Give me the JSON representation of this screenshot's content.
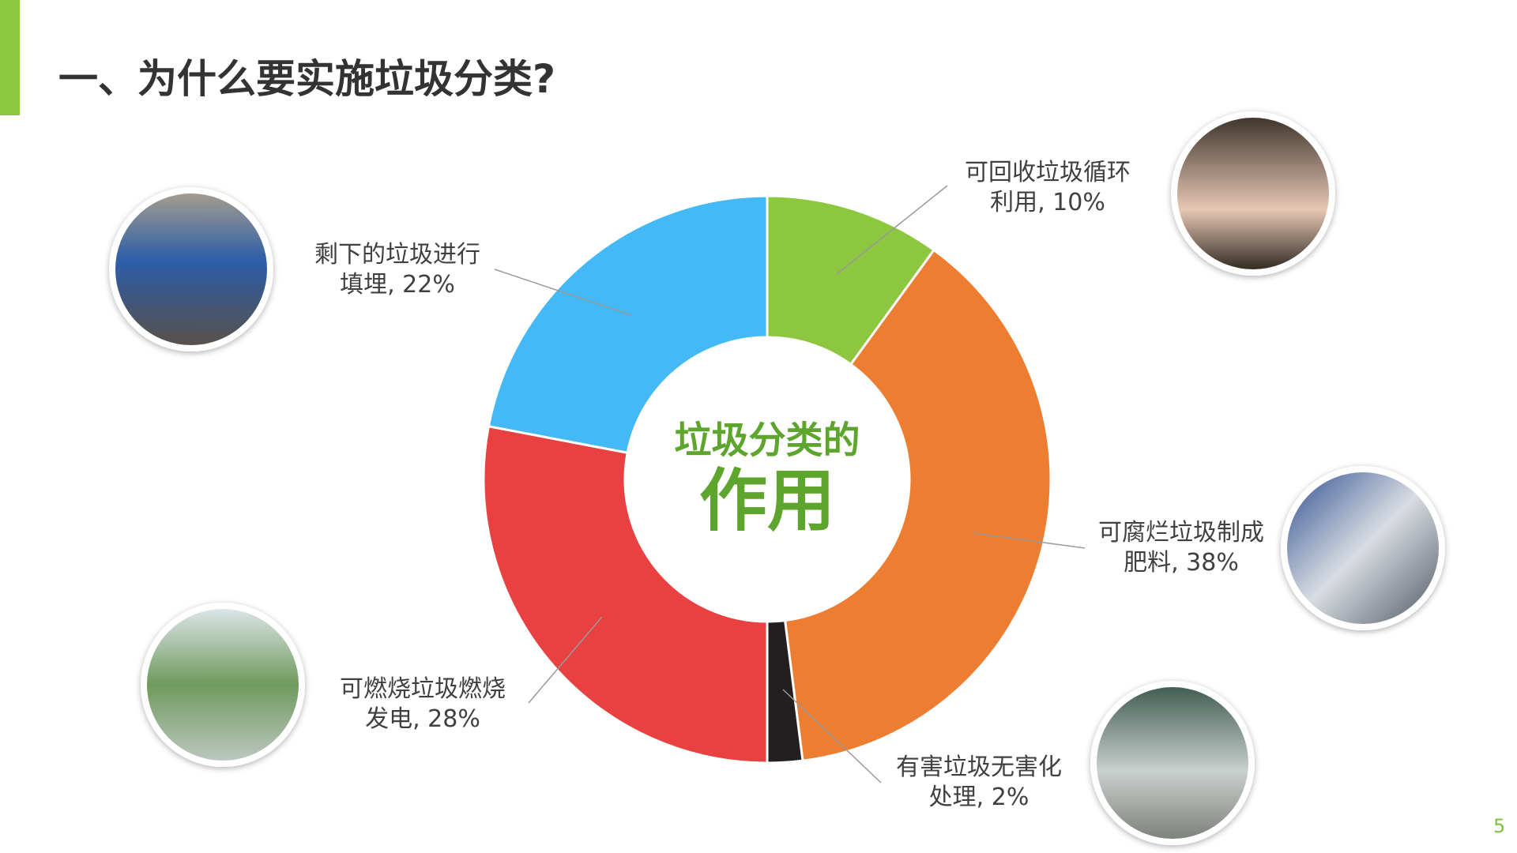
{
  "header": {
    "title": "一、为什么要实施垃圾分类?",
    "page_number": "5"
  },
  "chart_data": {
    "type": "donut",
    "center_text": [
      "垃圾分类的",
      "作用"
    ],
    "values": [
      10,
      38,
      2,
      28,
      22
    ],
    "value_labels": [
      "可回收垃圾循环利用, 10%",
      "可腐烂垃圾制成肥料, 38%",
      "有害垃圾无害化处理, 2%",
      "可燃烧垃圾燃烧发电, 28%",
      "剩下的垃圾进行填埋, 22%"
    ],
    "colors": [
      "#8dc63f",
      "#ed7d31",
      "#231f20",
      "#e94141",
      "#45b9f5"
    ]
  }
}
